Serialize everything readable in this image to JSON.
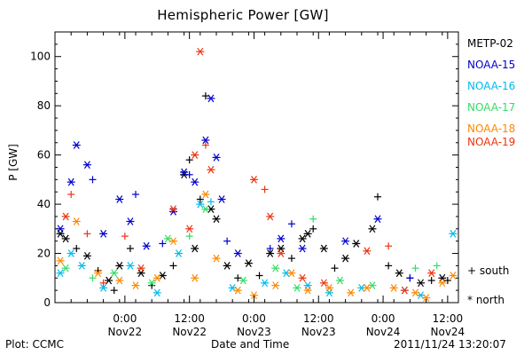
{
  "chart_data": {
    "type": "scatter",
    "title": "Hemispheric Power [GW]",
    "xlabel": "Date and Time",
    "ylabel": "P [GW]",
    "ylim": [
      0,
      110
    ],
    "yticks": [
      0,
      20,
      40,
      60,
      80,
      100
    ],
    "xlim": [
      "2011-11-21 11:00",
      "2011-11-24 14:00"
    ],
    "x_ticks": [
      {
        "time": "2011-11-22 00:00",
        "line1": "0:00",
        "line2": "Nov22"
      },
      {
        "time": "2011-11-22 12:00",
        "line1": "12:00",
        "line2": "Nov22"
      },
      {
        "time": "2011-11-23 00:00",
        "line1": "0:00",
        "line2": "Nov23"
      },
      {
        "time": "2011-11-23 12:00",
        "line1": "12:00",
        "line2": "Nov23"
      },
      {
        "time": "2011-11-24 00:00",
        "line1": "0:00",
        "line2": "Nov24"
      },
      {
        "time": "2011-11-24 12:00",
        "line1": "12:00",
        "line2": "Nov24"
      }
    ],
    "symbols": {
      "south": "+",
      "north": "*"
    },
    "symbol_legend": [
      {
        "symbol": "+",
        "label": "south"
      },
      {
        "symbol": "*",
        "label": "north"
      }
    ],
    "series": [
      {
        "name": "METP-02",
        "color": "#000000",
        "points": [
          {
            "x": "2011-11-21 12:00",
            "y": 28,
            "hemi": "north"
          },
          {
            "x": "2011-11-21 13:00",
            "y": 26,
            "hemi": "north"
          },
          {
            "x": "2011-11-21 15:00",
            "y": 22,
            "hemi": "south"
          },
          {
            "x": "2011-11-21 17:00",
            "y": 19,
            "hemi": "north"
          },
          {
            "x": "2011-11-21 19:00",
            "y": 13,
            "hemi": "south"
          },
          {
            "x": "2011-11-21 21:00",
            "y": 9,
            "hemi": "north"
          },
          {
            "x": "2011-11-21 22:00",
            "y": 5,
            "hemi": "south"
          },
          {
            "x": "2011-11-21 23:00",
            "y": 15,
            "hemi": "north"
          },
          {
            "x": "2011-11-22 01:00",
            "y": 22,
            "hemi": "south"
          },
          {
            "x": "2011-11-22 03:00",
            "y": 12,
            "hemi": "north"
          },
          {
            "x": "2011-11-22 05:00",
            "y": 7,
            "hemi": "south"
          },
          {
            "x": "2011-11-22 07:00",
            "y": 11,
            "hemi": "north"
          },
          {
            "x": "2011-11-22 09:00",
            "y": 15,
            "hemi": "south"
          },
          {
            "x": "2011-11-22 11:00",
            "y": 52,
            "hemi": "north"
          },
          {
            "x": "2011-11-22 12:00",
            "y": 58,
            "hemi": "south"
          },
          {
            "x": "2011-11-22 13:00",
            "y": 22,
            "hemi": "north"
          },
          {
            "x": "2011-11-22 14:00",
            "y": 42,
            "hemi": "south"
          },
          {
            "x": "2011-11-22 15:00",
            "y": 84,
            "hemi": "south"
          },
          {
            "x": "2011-11-22 16:00",
            "y": 38,
            "hemi": "north"
          },
          {
            "x": "2011-11-22 17:00",
            "y": 34,
            "hemi": "north"
          },
          {
            "x": "2011-11-22 19:00",
            "y": 15,
            "hemi": "north"
          },
          {
            "x": "2011-11-22 21:00",
            "y": 10,
            "hemi": "south"
          },
          {
            "x": "2011-11-22 23:00",
            "y": 16,
            "hemi": "north"
          },
          {
            "x": "2011-11-23 01:00",
            "y": 11,
            "hemi": "south"
          },
          {
            "x": "2011-11-23 03:00",
            "y": 20,
            "hemi": "north"
          },
          {
            "x": "2011-11-23 05:00",
            "y": 22,
            "hemi": "north"
          },
          {
            "x": "2011-11-23 07:00",
            "y": 18,
            "hemi": "south"
          },
          {
            "x": "2011-11-23 09:00",
            "y": 26,
            "hemi": "north"
          },
          {
            "x": "2011-11-23 10:00",
            "y": 28,
            "hemi": "north"
          },
          {
            "x": "2011-11-23 11:00",
            "y": 30,
            "hemi": "south"
          },
          {
            "x": "2011-11-23 13:00",
            "y": 22,
            "hemi": "north"
          },
          {
            "x": "2011-11-23 15:00",
            "y": 14,
            "hemi": "south"
          },
          {
            "x": "2011-11-23 17:00",
            "y": 18,
            "hemi": "north"
          },
          {
            "x": "2011-11-23 19:00",
            "y": 24,
            "hemi": "north"
          },
          {
            "x": "2011-11-23 22:00",
            "y": 30,
            "hemi": "north"
          },
          {
            "x": "2011-11-23 23:00",
            "y": 43,
            "hemi": "south"
          },
          {
            "x": "2011-11-24 01:00",
            "y": 15,
            "hemi": "south"
          },
          {
            "x": "2011-11-24 03:00",
            "y": 12,
            "hemi": "north"
          },
          {
            "x": "2011-11-24 05:00",
            "y": 10,
            "hemi": "south"
          },
          {
            "x": "2011-11-24 07:00",
            "y": 8,
            "hemi": "north"
          },
          {
            "x": "2011-11-24 09:00",
            "y": 9,
            "hemi": "south"
          },
          {
            "x": "2011-11-24 11:00",
            "y": 10,
            "hemi": "north"
          },
          {
            "x": "2011-11-24 12:00",
            "y": 9,
            "hemi": "south"
          }
        ]
      },
      {
        "name": "NOAA-15",
        "color": "#0000cc",
        "points": [
          {
            "x": "2011-11-21 12:00",
            "y": 30,
            "hemi": "north"
          },
          {
            "x": "2011-11-21 14:00",
            "y": 49,
            "hemi": "north"
          },
          {
            "x": "2011-11-21 15:00",
            "y": 64,
            "hemi": "north"
          },
          {
            "x": "2011-11-21 17:00",
            "y": 56,
            "hemi": "north"
          },
          {
            "x": "2011-11-21 18:00",
            "y": 50,
            "hemi": "south"
          },
          {
            "x": "2011-11-21 20:00",
            "y": 28,
            "hemi": "north"
          },
          {
            "x": "2011-11-21 23:00",
            "y": 42,
            "hemi": "north"
          },
          {
            "x": "2011-11-22 01:00",
            "y": 33,
            "hemi": "north"
          },
          {
            "x": "2011-11-22 02:00",
            "y": 44,
            "hemi": "south"
          },
          {
            "x": "2011-11-22 04:00",
            "y": 23,
            "hemi": "north"
          },
          {
            "x": "2011-11-22 07:00",
            "y": 24,
            "hemi": "south"
          },
          {
            "x": "2011-11-22 09:00",
            "y": 37,
            "hemi": "north"
          },
          {
            "x": "2011-11-22 11:00",
            "y": 53,
            "hemi": "north"
          },
          {
            "x": "2011-11-22 12:00",
            "y": 52,
            "hemi": "south"
          },
          {
            "x": "2011-11-22 13:00",
            "y": 49,
            "hemi": "north"
          },
          {
            "x": "2011-11-22 15:00",
            "y": 66,
            "hemi": "north"
          },
          {
            "x": "2011-11-22 16:00",
            "y": 83,
            "hemi": "north"
          },
          {
            "x": "2011-11-22 17:00",
            "y": 59,
            "hemi": "north"
          },
          {
            "x": "2011-11-22 18:00",
            "y": 42,
            "hemi": "north"
          },
          {
            "x": "2011-11-22 19:00",
            "y": 25,
            "hemi": "south"
          },
          {
            "x": "2011-11-22 21:00",
            "y": 20,
            "hemi": "north"
          },
          {
            "x": "2011-11-23 03:00",
            "y": 22,
            "hemi": "south"
          },
          {
            "x": "2011-11-23 05:00",
            "y": 26,
            "hemi": "north"
          },
          {
            "x": "2011-11-23 07:00",
            "y": 32,
            "hemi": "south"
          },
          {
            "x": "2011-11-23 09:00",
            "y": 22,
            "hemi": "north"
          },
          {
            "x": "2011-11-23 17:00",
            "y": 25,
            "hemi": "north"
          },
          {
            "x": "2011-11-23 23:00",
            "y": 34,
            "hemi": "north"
          },
          {
            "x": "2011-11-24 05:00",
            "y": 10,
            "hemi": "south"
          }
        ]
      },
      {
        "name": "NOAA-16",
        "color": "#00bbee",
        "points": [
          {
            "x": "2011-11-21 12:00",
            "y": 12,
            "hemi": "north"
          },
          {
            "x": "2011-11-21 14:00",
            "y": 20,
            "hemi": "north"
          },
          {
            "x": "2011-11-21 16:00",
            "y": 15,
            "hemi": "north"
          },
          {
            "x": "2011-11-21 20:00",
            "y": 6,
            "hemi": "north"
          },
          {
            "x": "2011-11-22 01:00",
            "y": 15,
            "hemi": "north"
          },
          {
            "x": "2011-11-22 06:00",
            "y": 4,
            "hemi": "north"
          },
          {
            "x": "2011-11-22 10:00",
            "y": 20,
            "hemi": "north"
          },
          {
            "x": "2011-11-22 14:00",
            "y": 40,
            "hemi": "north"
          },
          {
            "x": "2011-11-22 16:00",
            "y": 41,
            "hemi": "south"
          },
          {
            "x": "2011-11-22 20:00",
            "y": 6,
            "hemi": "north"
          },
          {
            "x": "2011-11-23 02:00",
            "y": 8,
            "hemi": "north"
          },
          {
            "x": "2011-11-23 06:00",
            "y": 12,
            "hemi": "north"
          },
          {
            "x": "2011-11-23 10:00",
            "y": 7,
            "hemi": "north"
          },
          {
            "x": "2011-11-23 14:00",
            "y": 4,
            "hemi": "north"
          },
          {
            "x": "2011-11-23 20:00",
            "y": 6,
            "hemi": "north"
          },
          {
            "x": "2011-11-24 04:00",
            "y": 5,
            "hemi": "north"
          },
          {
            "x": "2011-11-24 07:00",
            "y": 3,
            "hemi": "north"
          },
          {
            "x": "2011-11-24 13:00",
            "y": 28,
            "hemi": "north"
          }
        ]
      },
      {
        "name": "NOAA-17",
        "color": "#33dd66",
        "points": [
          {
            "x": "2011-11-21 13:00",
            "y": 14,
            "hemi": "north"
          },
          {
            "x": "2011-11-21 18:00",
            "y": 10,
            "hemi": "south"
          },
          {
            "x": "2011-11-21 22:00",
            "y": 12,
            "hemi": "north"
          },
          {
            "x": "2011-11-22 05:00",
            "y": 8,
            "hemi": "north"
          },
          {
            "x": "2011-11-22 08:00",
            "y": 26,
            "hemi": "north"
          },
          {
            "x": "2011-11-22 12:00",
            "y": 27,
            "hemi": "south"
          },
          {
            "x": "2011-11-22 15:00",
            "y": 38,
            "hemi": "north"
          },
          {
            "x": "2011-11-22 22:00",
            "y": 9,
            "hemi": "north"
          },
          {
            "x": "2011-11-23 04:00",
            "y": 14,
            "hemi": "north"
          },
          {
            "x": "2011-11-23 08:00",
            "y": 6,
            "hemi": "north"
          },
          {
            "x": "2011-11-23 11:00",
            "y": 34,
            "hemi": "south"
          },
          {
            "x": "2011-11-23 16:00",
            "y": 9,
            "hemi": "north"
          },
          {
            "x": "2011-11-23 22:00",
            "y": 7,
            "hemi": "north"
          },
          {
            "x": "2011-11-24 06:00",
            "y": 14,
            "hemi": "south"
          },
          {
            "x": "2011-11-24 10:00",
            "y": 15,
            "hemi": "south"
          }
        ]
      },
      {
        "name": "NOAA-18",
        "color": "#ff8800",
        "points": [
          {
            "x": "2011-11-21 12:00",
            "y": 17,
            "hemi": "north"
          },
          {
            "x": "2011-11-21 15:00",
            "y": 33,
            "hemi": "north"
          },
          {
            "x": "2011-11-21 19:00",
            "y": 12,
            "hemi": "north"
          },
          {
            "x": "2011-11-21 23:00",
            "y": 9,
            "hemi": "north"
          },
          {
            "x": "2011-11-22 02:00",
            "y": 7,
            "hemi": "north"
          },
          {
            "x": "2011-11-22 06:00",
            "y": 10,
            "hemi": "north"
          },
          {
            "x": "2011-11-22 09:00",
            "y": 25,
            "hemi": "north"
          },
          {
            "x": "2011-11-22 13:00",
            "y": 10,
            "hemi": "north"
          },
          {
            "x": "2011-11-22 15:00",
            "y": 44,
            "hemi": "north"
          },
          {
            "x": "2011-11-22 17:00",
            "y": 18,
            "hemi": "north"
          },
          {
            "x": "2011-11-22 21:00",
            "y": 5,
            "hemi": "north"
          },
          {
            "x": "2011-11-23 00:00",
            "y": 3,
            "hemi": "north"
          },
          {
            "x": "2011-11-23 04:00",
            "y": 7,
            "hemi": "north"
          },
          {
            "x": "2011-11-23 07:00",
            "y": 12,
            "hemi": "north"
          },
          {
            "x": "2011-11-23 10:00",
            "y": 5,
            "hemi": "north"
          },
          {
            "x": "2011-11-23 14:00",
            "y": 6,
            "hemi": "north"
          },
          {
            "x": "2011-11-23 18:00",
            "y": 4,
            "hemi": "north"
          },
          {
            "x": "2011-11-23 21:00",
            "y": 6,
            "hemi": "north"
          },
          {
            "x": "2011-11-24 02:00",
            "y": 6,
            "hemi": "north"
          },
          {
            "x": "2011-11-24 06:00",
            "y": 4,
            "hemi": "north"
          },
          {
            "x": "2011-11-24 08:00",
            "y": 2,
            "hemi": "north"
          },
          {
            "x": "2011-11-24 11:00",
            "y": 8,
            "hemi": "north"
          },
          {
            "x": "2011-11-24 13:00",
            "y": 11,
            "hemi": "north"
          }
        ]
      },
      {
        "name": "NOAA-19",
        "color": "#ee3311",
        "points": [
          {
            "x": "2011-11-21 13:00",
            "y": 35,
            "hemi": "north"
          },
          {
            "x": "2011-11-21 14:00",
            "y": 44,
            "hemi": "south"
          },
          {
            "x": "2011-11-21 17:00",
            "y": 28,
            "hemi": "south"
          },
          {
            "x": "2011-11-21 20:00",
            "y": 8,
            "hemi": "south"
          },
          {
            "x": "2011-11-22 00:00",
            "y": 27,
            "hemi": "south"
          },
          {
            "x": "2011-11-22 03:00",
            "y": 14,
            "hemi": "north"
          },
          {
            "x": "2011-11-22 09:00",
            "y": 38,
            "hemi": "north"
          },
          {
            "x": "2011-11-22 12:00",
            "y": 30,
            "hemi": "north"
          },
          {
            "x": "2011-11-22 13:00",
            "y": 60,
            "hemi": "north"
          },
          {
            "x": "2011-11-22 14:00",
            "y": 102,
            "hemi": "north"
          },
          {
            "x": "2011-11-22 15:00",
            "y": 64,
            "hemi": "south"
          },
          {
            "x": "2011-11-22 16:00",
            "y": 54,
            "hemi": "north"
          },
          {
            "x": "2011-11-23 00:00",
            "y": 50,
            "hemi": "north"
          },
          {
            "x": "2011-11-23 02:00",
            "y": 46,
            "hemi": "south"
          },
          {
            "x": "2011-11-23 03:00",
            "y": 35,
            "hemi": "north"
          },
          {
            "x": "2011-11-23 05:00",
            "y": 20,
            "hemi": "north"
          },
          {
            "x": "2011-11-23 09:00",
            "y": 10,
            "hemi": "north"
          },
          {
            "x": "2011-11-23 13:00",
            "y": 8,
            "hemi": "north"
          },
          {
            "x": "2011-11-23 21:00",
            "y": 21,
            "hemi": "north"
          },
          {
            "x": "2011-11-24 01:00",
            "y": 23,
            "hemi": "south"
          },
          {
            "x": "2011-11-24 04:00",
            "y": 5,
            "hemi": "north"
          },
          {
            "x": "2011-11-24 09:00",
            "y": 12,
            "hemi": "north"
          }
        ]
      }
    ]
  },
  "footer": {
    "left": "Plot: CCMC",
    "center": "Date and Time",
    "right": "2011/11/24 13:20:07"
  }
}
